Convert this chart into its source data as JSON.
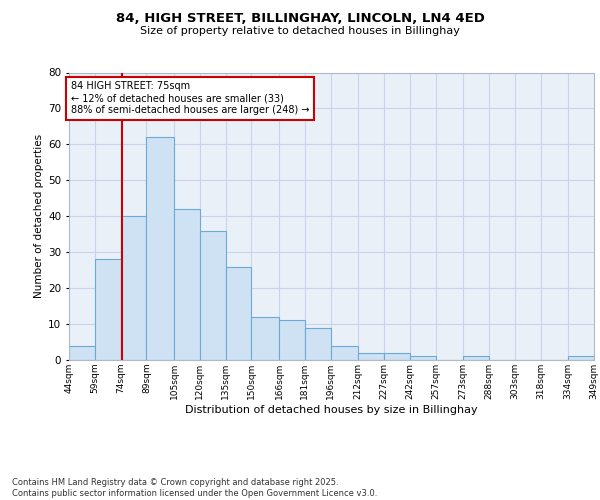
{
  "title1": "84, HIGH STREET, BILLINGHAY, LINCOLN, LN4 4ED",
  "title2": "Size of property relative to detached houses in Billinghay",
  "xlabel": "Distribution of detached houses by size in Billinghay",
  "ylabel": "Number of detached properties",
  "bins": [
    44,
    59,
    74,
    89,
    105,
    120,
    135,
    150,
    166,
    181,
    196,
    212,
    227,
    242,
    257,
    273,
    288,
    303,
    318,
    334,
    349
  ],
  "counts": [
    4,
    28,
    40,
    62,
    42,
    36,
    26,
    12,
    11,
    9,
    4,
    2,
    2,
    1,
    0,
    1,
    0,
    0,
    0,
    1
  ],
  "bar_color": "#cfe2f3",
  "bar_edge_color": "#6aaad4",
  "grid_color": "#c8d4e8",
  "bg_color": "#eaf0f8",
  "vline_x": 75,
  "vline_color": "#cc0000",
  "annotation_text": "84 HIGH STREET: 75sqm\n← 12% of detached houses are smaller (33)\n88% of semi-detached houses are larger (248) →",
  "annotation_box_color": "#cc0000",
  "footer_text": "Contains HM Land Registry data © Crown copyright and database right 2025.\nContains public sector information licensed under the Open Government Licence v3.0.",
  "ylim": [
    0,
    80
  ],
  "yticks": [
    0,
    10,
    20,
    30,
    40,
    50,
    60,
    70,
    80
  ],
  "tick_labels": [
    "44sqm",
    "59sqm",
    "74sqm",
    "89sqm",
    "105sqm",
    "120sqm",
    "135sqm",
    "150sqm",
    "166sqm",
    "181sqm",
    "196sqm",
    "212sqm",
    "227sqm",
    "242sqm",
    "257sqm",
    "273sqm",
    "288sqm",
    "303sqm",
    "318sqm",
    "334sqm",
    "349sqm"
  ],
  "title1_fontsize": 9.5,
  "title2_fontsize": 8.0,
  "ylabel_fontsize": 7.5,
  "xlabel_fontsize": 8.0,
  "tick_fontsize": 6.5,
  "ytick_fontsize": 7.5,
  "ann_fontsize": 7.0,
  "footer_fontsize": 6.0
}
